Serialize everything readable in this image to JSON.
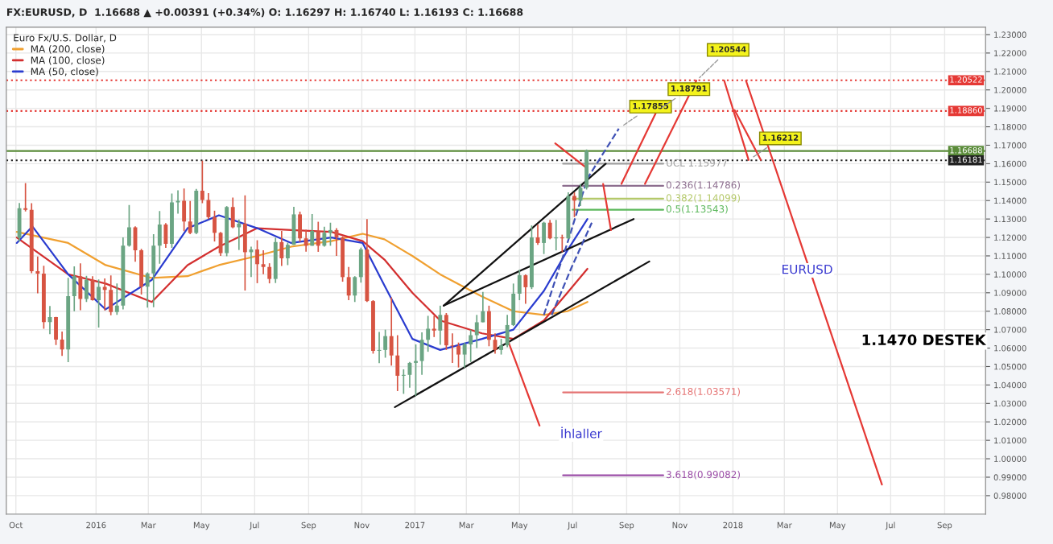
{
  "chart_data": {
    "type": "candlestick",
    "title": "FX:EURUSD, D  1.16688 ▲ +0.00391 (+0.34%) O: 1.16297 H: 1.16740 L: 1.16193 C: 1.16688",
    "legend_title": "Euro Fx/U.S. Dollar, D",
    "legend": "top left",
    "grid": true,
    "x": [
      "2015-10-05",
      "2015-10-12",
      "2015-10-19",
      "2015-10-26",
      "2015-11-02",
      "2015-11-09",
      "2015-11-16",
      "2015-11-23",
      "2015-11-30",
      "2015-12-07",
      "2015-12-14",
      "2015-12-21",
      "2015-12-28",
      "2016-01-04",
      "2016-01-11",
      "2016-01-18",
      "2016-01-25",
      "2016-02-01",
      "2016-02-08",
      "2016-02-15",
      "2016-02-22",
      "2016-02-29",
      "2016-03-07",
      "2016-03-14",
      "2016-03-21",
      "2016-03-28",
      "2016-04-04",
      "2016-04-11",
      "2016-04-18",
      "2016-04-25",
      "2016-05-02",
      "2016-05-09",
      "2016-05-16",
      "2016-05-23",
      "2016-05-30",
      "2016-06-06",
      "2016-06-13",
      "2016-06-20",
      "2016-06-27",
      "2016-07-04",
      "2016-07-11",
      "2016-07-18",
      "2016-07-25",
      "2016-08-01",
      "2016-08-08",
      "2016-08-15",
      "2016-08-22",
      "2016-08-29",
      "2016-09-05",
      "2016-09-12",
      "2016-09-19",
      "2016-09-26",
      "2016-10-03",
      "2016-10-10",
      "2016-10-17",
      "2016-10-24",
      "2016-10-31",
      "2016-11-07",
      "2016-11-14",
      "2016-11-21",
      "2016-11-28",
      "2016-12-05",
      "2016-12-12",
      "2016-12-19",
      "2016-12-26",
      "2017-01-02",
      "2017-01-09",
      "2017-01-16",
      "2017-01-23",
      "2017-01-30",
      "2017-02-06",
      "2017-02-13",
      "2017-02-20",
      "2017-02-27",
      "2017-03-06",
      "2017-03-13",
      "2017-03-20",
      "2017-03-27",
      "2017-04-03",
      "2017-04-10",
      "2017-04-17",
      "2017-04-24",
      "2017-05-01",
      "2017-05-08",
      "2017-05-15",
      "2017-05-22",
      "2017-05-29",
      "2017-06-05",
      "2017-06-12",
      "2017-06-19",
      "2017-06-26",
      "2017-07-03",
      "2017-07-10",
      "2017-07-17"
    ],
    "ohlc": [
      [
        1.1197,
        1.1387,
        1.1177,
        1.1358
      ],
      [
        1.1358,
        1.1495,
        1.1341,
        1.135
      ],
      [
        1.135,
        1.1386,
        1.1006,
        1.1017
      ],
      [
        1.1017,
        1.1097,
        1.0897,
        1.1004
      ],
      [
        1.1004,
        1.1046,
        1.0705,
        1.0741
      ],
      [
        1.0741,
        1.0828,
        1.0676,
        1.0768
      ],
      [
        1.0768,
        1.0769,
        1.0617,
        1.0646
      ],
      [
        1.0646,
        1.069,
        1.0558,
        1.0593
      ],
      [
        1.0593,
        1.0981,
        1.0524,
        1.0882
      ],
      [
        1.0882,
        1.1043,
        1.08,
        1.099
      ],
      [
        1.099,
        1.106,
        1.0805,
        1.0866
      ],
      [
        1.0866,
        1.0992,
        1.085,
        1.097
      ],
      [
        1.097,
        1.099,
        1.0858,
        1.086
      ],
      [
        1.086,
        1.0972,
        1.0711,
        1.0932
      ],
      [
        1.0932,
        1.0978,
        1.0804,
        1.0916
      ],
      [
        1.0916,
        1.0994,
        1.0778,
        1.0795
      ],
      [
        1.0795,
        1.095,
        1.078,
        1.083
      ],
      [
        1.083,
        1.12,
        1.081,
        1.1155
      ],
      [
        1.1155,
        1.1376,
        1.115,
        1.1255
      ],
      [
        1.1255,
        1.126,
        1.1068,
        1.113
      ],
      [
        1.113,
        1.1138,
        1.089,
        1.0933
      ],
      [
        1.0933,
        1.101,
        1.082,
        1.1005
      ],
      [
        1.1005,
        1.1218,
        1.0822,
        1.1156
      ],
      [
        1.1156,
        1.1343,
        1.1057,
        1.127
      ],
      [
        1.127,
        1.1278,
        1.1144,
        1.1165
      ],
      [
        1.1165,
        1.1438,
        1.1144,
        1.139
      ],
      [
        1.139,
        1.1455,
        1.1329,
        1.1399
      ],
      [
        1.1399,
        1.1465,
        1.1234,
        1.1286
      ],
      [
        1.1286,
        1.1398,
        1.1218,
        1.1224
      ],
      [
        1.1224,
        1.1463,
        1.1218,
        1.1453
      ],
      [
        1.1453,
        1.1616,
        1.1386,
        1.1403
      ],
      [
        1.1403,
        1.144,
        1.13,
        1.131
      ],
      [
        1.131,
        1.1345,
        1.1178,
        1.1225
      ],
      [
        1.1225,
        1.123,
        1.11,
        1.1115
      ],
      [
        1.1115,
        1.137,
        1.1098,
        1.1365
      ],
      [
        1.1365,
        1.1416,
        1.125,
        1.1255
      ],
      [
        1.1255,
        1.1297,
        1.1132,
        1.1275
      ],
      [
        1.1275,
        1.1428,
        1.0912,
        1.112
      ],
      [
        1.112,
        1.115,
        1.0985,
        1.1135
      ],
      [
        1.1135,
        1.1185,
        1.0952,
        1.1055
      ],
      [
        1.1055,
        1.113,
        1.1001,
        1.104
      ],
      [
        1.104,
        1.106,
        1.0951,
        1.0975
      ],
      [
        1.0975,
        1.1198,
        1.0953,
        1.1175
      ],
      [
        1.1175,
        1.1235,
        1.1045,
        1.1087
      ],
      [
        1.1087,
        1.1172,
        1.105,
        1.116
      ],
      [
        1.116,
        1.1366,
        1.116,
        1.1325
      ],
      [
        1.1325,
        1.134,
        1.1176,
        1.1195
      ],
      [
        1.1195,
        1.1242,
        1.1123,
        1.1155
      ],
      [
        1.1155,
        1.1327,
        1.1155,
        1.1235
      ],
      [
        1.1235,
        1.1285,
        1.1122,
        1.1155
      ],
      [
        1.1155,
        1.1258,
        1.115,
        1.1225
      ],
      [
        1.1225,
        1.128,
        1.1155,
        1.124
      ],
      [
        1.124,
        1.125,
        1.11,
        1.12
      ],
      [
        1.12,
        1.1205,
        1.096,
        1.0985
      ],
      [
        1.0985,
        1.104,
        1.086,
        1.0885
      ],
      [
        1.0885,
        1.099,
        1.085,
        1.0985
      ],
      [
        1.0985,
        1.1145,
        1.0955,
        1.1135
      ],
      [
        1.1135,
        1.13,
        1.085,
        1.0855
      ],
      [
        1.0855,
        1.086,
        1.057,
        1.0585
      ],
      [
        1.0585,
        1.0688,
        1.0518,
        1.059
      ],
      [
        1.059,
        1.07,
        1.0548,
        1.0665
      ],
      [
        1.0665,
        1.0875,
        1.0505,
        1.056
      ],
      [
        1.056,
        1.067,
        1.0367,
        1.045
      ],
      [
        1.045,
        1.0485,
        1.0352,
        1.0455
      ],
      [
        1.0455,
        1.0525,
        1.0385,
        1.052
      ],
      [
        1.052,
        1.062,
        1.0341,
        1.053
      ],
      [
        1.053,
        1.0685,
        1.0455,
        1.0645
      ],
      [
        1.0645,
        1.0775,
        1.058,
        1.0705
      ],
      [
        1.0705,
        1.0775,
        1.066,
        1.0695
      ],
      [
        1.0695,
        1.083,
        1.0618,
        1.078
      ],
      [
        1.078,
        1.079,
        1.059,
        1.0615
      ],
      [
        1.0615,
        1.068,
        1.052,
        1.0612
      ],
      [
        1.0612,
        1.063,
        1.0495,
        1.0565
      ],
      [
        1.0565,
        1.063,
        1.0495,
        1.062
      ],
      [
        1.062,
        1.07,
        1.0525,
        1.067
      ],
      [
        1.067,
        1.078,
        1.06,
        1.074
      ],
      [
        1.074,
        1.0905,
        1.074,
        1.08
      ],
      [
        1.08,
        1.083,
        1.061,
        1.0645
      ],
      [
        1.0645,
        1.068,
        1.057,
        1.059
      ],
      [
        1.059,
        1.065,
        1.0565,
        1.0615
      ],
      [
        1.0615,
        1.078,
        1.0605,
        1.0725
      ],
      [
        1.0725,
        1.095,
        1.072,
        1.0895
      ],
      [
        1.0895,
        1.1025,
        1.086,
        1.0995
      ],
      [
        1.0995,
        1.1,
        1.084,
        1.093
      ],
      [
        1.093,
        1.1265,
        1.092,
        1.12
      ],
      [
        1.12,
        1.127,
        1.116,
        1.117
      ],
      [
        1.117,
        1.1285,
        1.111,
        1.128
      ],
      [
        1.128,
        1.1295,
        1.119,
        1.1195
      ],
      [
        1.1195,
        1.1295,
        1.113,
        1.12
      ],
      [
        1.12,
        1.1215,
        1.112,
        1.1195
      ],
      [
        1.1195,
        1.1445,
        1.119,
        1.1425
      ],
      [
        1.1425,
        1.1445,
        1.131,
        1.14
      ],
      [
        1.14,
        1.149,
        1.137,
        1.147
      ],
      [
        1.147,
        1.1677,
        1.146,
        1.1669
      ]
    ],
    "colors": [
      "#6ba583",
      "#d75442",
      "#d75442",
      "#d75442",
      "#d75442",
      "#6ba583",
      "#d75442",
      "#d75442",
      "#6ba583",
      "#6ba583",
      "#d75442",
      "#6ba583",
      "#d75442",
      "#6ba583",
      "#d75442",
      "#d75442",
      "#6ba583",
      "#6ba583",
      "#6ba583",
      "#d75442",
      "#d75442",
      "#6ba583",
      "#6ba583",
      "#6ba583",
      "#d75442",
      "#6ba583",
      "#6ba583",
      "#d75442",
      "#d75442",
      "#6ba583",
      "#d75442",
      "#d75442",
      "#d75442",
      "#d75442",
      "#6ba583",
      "#d75442",
      "#6ba583",
      "#d75442",
      "#6ba583",
      "#d75442",
      "#d75442",
      "#d75442",
      "#6ba583",
      "#d75442",
      "#6ba583",
      "#6ba583",
      "#d75442",
      "#d75442",
      "#6ba583",
      "#d75442",
      "#6ba583",
      "#6ba583",
      "#d75442",
      "#d75442",
      "#d75442",
      "#6ba583",
      "#6ba583",
      "#d75442",
      "#d75442",
      "#6ba583",
      "#6ba583",
      "#d75442",
      "#d75442",
      "#6ba583",
      "#6ba583",
      "#6ba583",
      "#6ba583",
      "#6ba583",
      "#d75442",
      "#6ba583",
      "#d75442",
      "#d75442",
      "#d75442",
      "#6ba583",
      "#6ba583",
      "#6ba583",
      "#6ba583",
      "#d75442",
      "#d75442",
      "#6ba583",
      "#6ba583",
      "#6ba583",
      "#6ba583",
      "#d75442",
      "#6ba583",
      "#d75442",
      "#6ba583",
      "#d75442",
      "#6ba583",
      "#d75442",
      "#6ba583",
      "#d75442",
      "#6ba583",
      "#6ba583"
    ],
    "series": [
      {
        "type": "line",
        "name": "MA (200, close)",
        "color": "#f0a030",
        "x": [
          "2015-10-02",
          "2015-11-30",
          "2016-01-12",
          "2016-03-05",
          "2016-04-15",
          "2016-05-21",
          "2016-07-04",
          "2016-08-12",
          "2016-09-27",
          "2016-11-02",
          "2016-11-27",
          "2016-12-29",
          "2017-01-30",
          "2017-03-19",
          "2017-04-24",
          "2017-05-29",
          "2017-06-25",
          "2017-07-18"
        ],
        "values": [
          1.123,
          1.117,
          1.105,
          1.098,
          1.099,
          1.105,
          1.11,
          1.115,
          1.118,
          1.122,
          1.119,
          1.11,
          1.1,
          1.088,
          1.08,
          1.078,
          1.08,
          1.085
        ]
      },
      {
        "type": "line",
        "name": "MA (100, close)",
        "color": "#d32f2f",
        "x": [
          "2015-10-02",
          "2015-11-30",
          "2016-01-12",
          "2016-03-05",
          "2016-04-15",
          "2016-05-21",
          "2016-07-04",
          "2016-08-12",
          "2016-09-27",
          "2016-11-02",
          "2016-11-27",
          "2016-12-29",
          "2017-01-30",
          "2017-03-19",
          "2017-04-24",
          "2017-05-29",
          "2017-06-25",
          "2017-07-18"
        ],
        "values": [
          1.12,
          1.1,
          1.095,
          1.085,
          1.105,
          1.115,
          1.125,
          1.124,
          1.123,
          1.118,
          1.108,
          1.09,
          1.075,
          1.068,
          1.065,
          1.075,
          1.09,
          1.103
        ]
      },
      {
        "type": "line",
        "name": "MA (50, close)",
        "color": "#2a3ccf",
        "x": [
          "2015-10-02",
          "2015-10-20",
          "2015-11-30",
          "2016-01-12",
          "2016-03-05",
          "2016-04-15",
          "2016-05-21",
          "2016-07-04",
          "2016-08-12",
          "2016-09-27",
          "2016-11-02",
          "2016-11-27",
          "2016-12-29",
          "2017-01-30",
          "2017-03-19",
          "2017-04-24",
          "2017-05-29",
          "2017-06-25",
          "2017-07-18"
        ],
        "values": [
          1.117,
          1.126,
          1.1,
          1.081,
          1.097,
          1.125,
          1.132,
          1.125,
          1.117,
          1.12,
          1.117,
          1.094,
          1.065,
          1.059,
          1.065,
          1.07,
          1.091,
          1.113,
          1.13
        ]
      },
      {
        "type": "line",
        "name": "UCL 1.15977",
        "color": "#9e9e9e",
        "x": [
          "2017-06-20",
          "2017-10-13"
        ],
        "values": [
          1.16,
          1.16
        ]
      },
      {
        "type": "line",
        "name": "0.236(1.14786)",
        "color": "#8d6e8f",
        "x": [
          "2017-06-20",
          "2017-10-13"
        ],
        "values": [
          1.148,
          1.148
        ]
      },
      {
        "type": "line",
        "name": "0.382(1.14099)",
        "color": "#b5c96a",
        "x": [
          "2017-07-01",
          "2017-10-13"
        ],
        "values": [
          1.141,
          1.141
        ]
      },
      {
        "type": "line",
        "name": "0.5(1.13543)",
        "color": "#5cb85c",
        "x": [
          "2017-07-01",
          "2017-10-13"
        ],
        "values": [
          1.135,
          1.135
        ]
      },
      {
        "type": "line",
        "name": "2.618(1.03571)",
        "color": "#e57373",
        "x": [
          "2017-06-20",
          "2017-10-13"
        ],
        "values": [
          1.036,
          1.036
        ]
      },
      {
        "type": "line",
        "name": "3.618(0.99082)",
        "color": "#9c4fa8",
        "x": [
          "2017-06-20",
          "2017-10-13"
        ],
        "values": [
          0.991,
          0.991
        ]
      },
      {
        "type": "line",
        "color": "#111111",
        "x": [
          "2017-02-03",
          "2017-08-08"
        ],
        "values": [
          1.083,
          1.16
        ]
      },
      {
        "type": "line",
        "color": "#111111",
        "x": [
          "2017-02-03",
          "2017-09-09"
        ],
        "values": [
          1.083,
          1.13
        ]
      },
      {
        "type": "line",
        "color": "#111111",
        "x": [
          "2016-12-09",
          "2017-09-27"
        ],
        "values": [
          1.028,
          1.107
        ]
      },
      {
        "type": "line",
        "color": "#3f51b5",
        "line_style": "dashed",
        "x": [
          "2017-05-29",
          "2017-06-25",
          "2017-07-18",
          "2017-08-23"
        ],
        "values": [
          1.078,
          1.117,
          1.152,
          1.179
        ]
      },
      {
        "type": "line",
        "color": "#3f51b5",
        "line_style": "dashed",
        "x": [
          "2017-06-07",
          "2017-06-30",
          "2017-07-23"
        ],
        "values": [
          1.078,
          1.104,
          1.128
        ]
      },
      {
        "type": "line",
        "color": "#e53935",
        "x": [
          "2017-06-11",
          "2017-07-16"
        ],
        "values": [
          1.171,
          1.158
        ]
      },
      {
        "type": "line",
        "color": "#e53935",
        "x": [
          "2017-08-05",
          "2017-08-14"
        ],
        "values": [
          1.149,
          1.124
        ]
      },
      {
        "type": "line",
        "color": "#e53935",
        "x": [
          "2017-08-26",
          "2017-10-06"
        ],
        "values": [
          1.149,
          1.189
        ]
      },
      {
        "type": "line",
        "color": "#e53935",
        "x": [
          "2017-09-22",
          "2017-11-20"
        ],
        "values": [
          1.149,
          1.205
        ]
      },
      {
        "type": "line",
        "color": "#e53935",
        "x": [
          "2017-12-22",
          "2018-01-19"
        ],
        "values": [
          1.205,
          1.162
        ]
      },
      {
        "type": "line",
        "color": "#e53935",
        "x": [
          "2018-01-03",
          "2018-02-02"
        ],
        "values": [
          1.189,
          1.162
        ]
      },
      {
        "type": "line",
        "color": "#e53935",
        "x": [
          "2018-01-16",
          "2018-06-21"
        ],
        "values": [
          1.205,
          0.986
        ]
      },
      {
        "type": "line",
        "color": "#e53935",
        "x": [
          "2017-05-24",
          "2017-04-17"
        ],
        "values": [
          1.018,
          1.065
        ]
      }
    ],
    "ref_lines": [
      {
        "axis": "y",
        "value": 1.20522,
        "label": "1.20522",
        "color": "#e53935",
        "line_style": "dotted"
      },
      {
        "axis": "y",
        "value": 1.1886,
        "label": "1.18860",
        "color": "#e53935",
        "line_style": "dotted"
      },
      {
        "axis": "y",
        "value": 1.16688,
        "label": "1.16688",
        "color": "#5b8c3a",
        "line_style": "solid"
      },
      {
        "axis": "y",
        "value": 1.16181,
        "label": "1.16181",
        "color": "#222222",
        "line_style": "dotted"
      }
    ],
    "annotations": [
      {
        "text": "1.17855",
        "x": "2017-08-23",
        "y": 1.1791
      },
      {
        "text": "1.18791",
        "x": "2017-10-06",
        "y": 1.1886
      },
      {
        "text": "1.20544",
        "x": "2017-11-20",
        "y": 1.205
      },
      {
        "text": "1.16212",
        "x": "2018-01-19",
        "y": 1.1619
      },
      "EURUSD",
      "1.1470 DESTEK",
      "İhlaller"
    ],
    "xlim": [
      "2015-09-20",
      "2018-10-18"
    ],
    "ylim": [
      0.97,
      1.234
    ],
    "xticks": [
      {
        "value": "2015-10-01",
        "label": "Oct"
      },
      {
        "value": "2016-01-01",
        "label": "2016"
      },
      {
        "value": "2016-03-01",
        "label": "Mar"
      },
      {
        "value": "2016-05-01",
        "label": "May"
      },
      {
        "value": "2016-07-01",
        "label": "Jul"
      },
      {
        "value": "2016-09-01",
        "label": "Sep"
      },
      {
        "value": "2016-11-01",
        "label": "Nov"
      },
      {
        "value": "2017-01-01",
        "label": "2017"
      },
      {
        "value": "2017-03-01",
        "label": "Mar"
      },
      {
        "value": "2017-05-01",
        "label": "May"
      },
      {
        "value": "2017-07-01",
        "label": "Jul"
      },
      {
        "value": "2017-09-01",
        "label": "Sep"
      },
      {
        "value": "2017-11-01",
        "label": "Nov"
      },
      {
        "value": "2018-01-01",
        "label": "2018"
      },
      {
        "value": "2018-03-01",
        "label": "Mar"
      },
      {
        "value": "2018-05-01",
        "label": "May"
      },
      {
        "value": "2018-07-01",
        "label": "Jul"
      },
      {
        "value": "2018-09-01",
        "label": "Sep"
      }
    ],
    "yticks": [
      {
        "value": 0.98,
        "label": "0.98000"
      },
      {
        "value": 0.99,
        "label": "0.99000"
      },
      {
        "value": 1.0,
        "label": "1.00000"
      },
      {
        "value": 1.01,
        "label": "1.01000"
      },
      {
        "value": 1.02,
        "label": "1.02000"
      },
      {
        "value": 1.03,
        "label": "1.03000"
      },
      {
        "value": 1.04,
        "label": "1.04000"
      },
      {
        "value": 1.05,
        "label": "1.05000"
      },
      {
        "value": 1.06,
        "label": "1.06000"
      },
      {
        "value": 1.07,
        "label": "1.07000"
      },
      {
        "value": 1.08,
        "label": "1.08000"
      },
      {
        "value": 1.09,
        "label": "1.09000"
      },
      {
        "value": 1.1,
        "label": "1.10000"
      },
      {
        "value": 1.11,
        "label": "1.11000"
      },
      {
        "value": 1.12,
        "label": "1.12000"
      },
      {
        "value": 1.13,
        "label": "1.13000"
      },
      {
        "value": 1.14,
        "label": "1.14000"
      },
      {
        "value": 1.15,
        "label": "1.15000"
      },
      {
        "value": 1.16,
        "label": "1.16000"
      },
      {
        "value": 1.17,
        "label": "1.17000"
      },
      {
        "value": 1.18,
        "label": "1.18000"
      },
      {
        "value": 1.19,
        "label": "1.19000"
      },
      {
        "value": 1.2,
        "label": "1.20000"
      },
      {
        "value": 1.21,
        "label": "1.21000"
      },
      {
        "value": 1.22,
        "label": "1.22000"
      },
      {
        "value": 1.23,
        "label": "1.23000"
      }
    ]
  }
}
